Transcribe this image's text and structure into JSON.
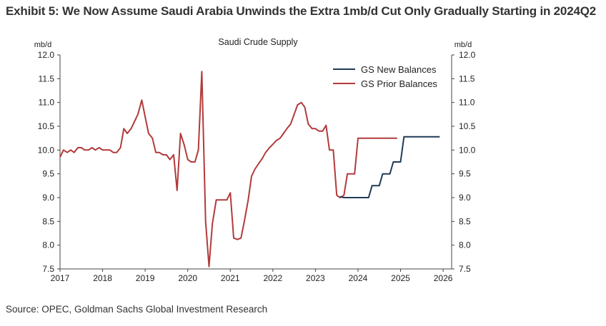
{
  "header": {
    "title": "Exhibit 5: We Now Assume Saudi Arabia Unwinds the Extra 1mb/d Cut Only Gradually Starting in 2024Q2"
  },
  "footer": {
    "source": "Source: OPEC, Goldman Sachs Global Investment Research"
  },
  "chart_data": {
    "type": "line",
    "title": "Saudi Crude Supply",
    "ylabel_left": "mb/d",
    "ylabel_right": "mb/d",
    "ylim": [
      7.5,
      12.0
    ],
    "yticks": [
      "12.0",
      "11.5",
      "11.0",
      "10.5",
      "10.0",
      "9.5",
      "9.0",
      "8.5",
      "8.0",
      "7.5"
    ],
    "xlim": [
      2017,
      2026.2
    ],
    "xticks": [
      "2017",
      "2018",
      "2019",
      "2020",
      "2021",
      "2022",
      "2023",
      "2024",
      "2025",
      "2026"
    ],
    "grid": false,
    "legend_position": "top-right",
    "series": [
      {
        "name": "GS New Balances",
        "color": "#1f3b57",
        "points": [
          [
            2023.58,
            9.02
          ],
          [
            2023.67,
            9.0
          ],
          [
            2023.75,
            9.0
          ],
          [
            2023.83,
            9.0
          ],
          [
            2023.92,
            9.0
          ],
          [
            2024.0,
            9.0
          ],
          [
            2024.08,
            9.0
          ],
          [
            2024.17,
            9.0
          ],
          [
            2024.25,
            9.0
          ],
          [
            2024.33,
            9.25
          ],
          [
            2024.42,
            9.25
          ],
          [
            2024.5,
            9.25
          ],
          [
            2024.58,
            9.5
          ],
          [
            2024.67,
            9.5
          ],
          [
            2024.75,
            9.5
          ],
          [
            2024.83,
            9.75
          ],
          [
            2024.92,
            9.75
          ],
          [
            2025.0,
            9.75
          ],
          [
            2025.08,
            10.28
          ],
          [
            2025.25,
            10.28
          ],
          [
            2025.5,
            10.28
          ],
          [
            2025.75,
            10.28
          ],
          [
            2025.92,
            10.28
          ]
        ]
      },
      {
        "name": "GS Prior Balances",
        "color": "#b23a3a",
        "points": [
          [
            2017.0,
            9.85
          ],
          [
            2017.08,
            10.0
          ],
          [
            2017.17,
            9.95
          ],
          [
            2017.25,
            10.0
          ],
          [
            2017.33,
            9.95
          ],
          [
            2017.42,
            10.05
          ],
          [
            2017.5,
            10.05
          ],
          [
            2017.58,
            10.0
          ],
          [
            2017.67,
            10.0
          ],
          [
            2017.75,
            10.05
          ],
          [
            2017.83,
            10.0
          ],
          [
            2017.92,
            10.05
          ],
          [
            2018.0,
            10.0
          ],
          [
            2018.08,
            10.0
          ],
          [
            2018.17,
            10.0
          ],
          [
            2018.25,
            9.95
          ],
          [
            2018.33,
            9.95
          ],
          [
            2018.42,
            10.05
          ],
          [
            2018.5,
            10.45
          ],
          [
            2018.58,
            10.35
          ],
          [
            2018.67,
            10.45
          ],
          [
            2018.75,
            10.6
          ],
          [
            2018.83,
            10.75
          ],
          [
            2018.92,
            11.05
          ],
          [
            2019.0,
            10.7
          ],
          [
            2019.08,
            10.35
          ],
          [
            2019.17,
            10.25
          ],
          [
            2019.25,
            9.95
          ],
          [
            2019.33,
            9.95
          ],
          [
            2019.42,
            9.9
          ],
          [
            2019.5,
            9.9
          ],
          [
            2019.58,
            9.8
          ],
          [
            2019.67,
            9.9
          ],
          [
            2019.75,
            9.15
          ],
          [
            2019.83,
            10.35
          ],
          [
            2019.92,
            10.1
          ],
          [
            2020.0,
            9.8
          ],
          [
            2020.08,
            9.75
          ],
          [
            2020.17,
            9.75
          ],
          [
            2020.25,
            10.0
          ],
          [
            2020.33,
            11.65
          ],
          [
            2020.42,
            8.5
          ],
          [
            2020.5,
            7.55
          ],
          [
            2020.58,
            8.45
          ],
          [
            2020.67,
            8.95
          ],
          [
            2020.75,
            8.95
          ],
          [
            2020.83,
            8.95
          ],
          [
            2020.92,
            8.95
          ],
          [
            2021.0,
            9.1
          ],
          [
            2021.08,
            8.15
          ],
          [
            2021.17,
            8.12
          ],
          [
            2021.25,
            8.15
          ],
          [
            2021.33,
            8.5
          ],
          [
            2021.42,
            8.95
          ],
          [
            2021.5,
            9.45
          ],
          [
            2021.58,
            9.6
          ],
          [
            2021.67,
            9.72
          ],
          [
            2021.75,
            9.82
          ],
          [
            2021.83,
            9.95
          ],
          [
            2021.92,
            10.05
          ],
          [
            2022.0,
            10.12
          ],
          [
            2022.08,
            10.2
          ],
          [
            2022.17,
            10.25
          ],
          [
            2022.25,
            10.35
          ],
          [
            2022.33,
            10.45
          ],
          [
            2022.42,
            10.55
          ],
          [
            2022.5,
            10.75
          ],
          [
            2022.58,
            10.95
          ],
          [
            2022.67,
            11.0
          ],
          [
            2022.75,
            10.9
          ],
          [
            2022.83,
            10.55
          ],
          [
            2022.92,
            10.45
          ],
          [
            2023.0,
            10.45
          ],
          [
            2023.08,
            10.4
          ],
          [
            2023.17,
            10.4
          ],
          [
            2023.25,
            10.52
          ],
          [
            2023.33,
            10.0
          ],
          [
            2023.42,
            10.0
          ],
          [
            2023.5,
            9.05
          ],
          [
            2023.58,
            9.0
          ],
          [
            2023.67,
            9.05
          ],
          [
            2023.75,
            9.5
          ],
          [
            2023.83,
            9.5
          ],
          [
            2023.92,
            9.5
          ],
          [
            2024.0,
            10.25
          ],
          [
            2024.25,
            10.25
          ],
          [
            2024.5,
            10.25
          ],
          [
            2024.75,
            10.25
          ],
          [
            2024.92,
            10.25
          ]
        ]
      }
    ]
  }
}
